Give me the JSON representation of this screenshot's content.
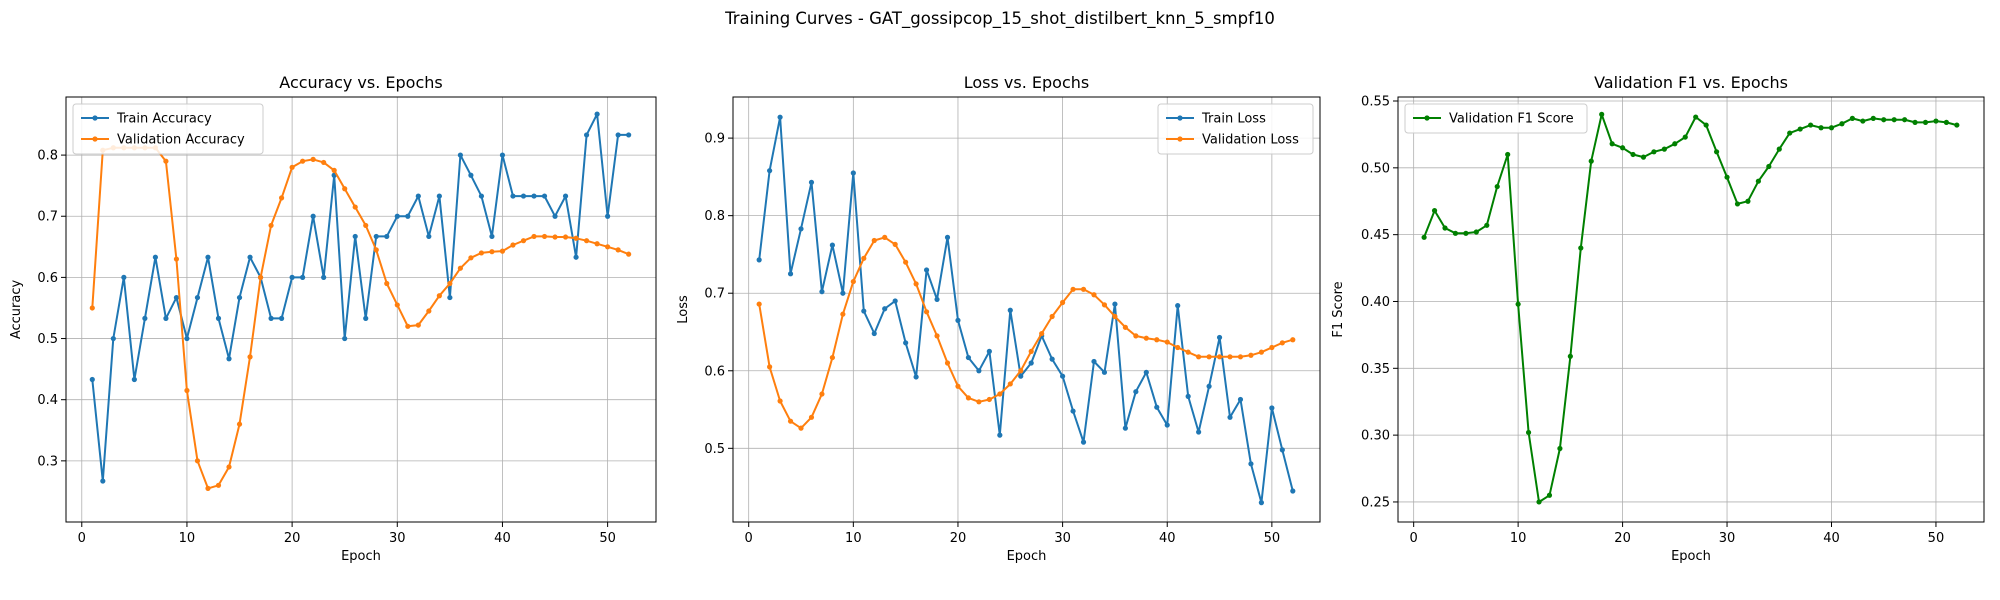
{
  "figure": {
    "suptitle": "Training Curves - GAT_gossipcop_15_shot_distilbert_knn_5_smpf10"
  },
  "chart_data": [
    {
      "type": "line",
      "title": "Accuracy vs. Epochs",
      "xlabel": "Epoch",
      "ylabel": "Accuracy",
      "xlim": [
        -1.5,
        54.6
      ],
      "ylim": [
        0.2,
        0.895
      ],
      "xticks": [
        0,
        10,
        20,
        30,
        40,
        50
      ],
      "yticks": [
        0.3,
        0.4,
        0.5,
        0.6,
        0.7,
        0.8
      ],
      "ytick_labels": [
        "0.3",
        "0.4",
        "0.5",
        "0.6",
        "0.7",
        "0.8"
      ],
      "grid": true,
      "legend": "top-left",
      "x": [
        1,
        2,
        3,
        4,
        5,
        6,
        7,
        8,
        9,
        10,
        11,
        12,
        13,
        14,
        15,
        16,
        17,
        18,
        19,
        20,
        21,
        22,
        23,
        24,
        25,
        26,
        27,
        28,
        29,
        30,
        31,
        32,
        33,
        34,
        35,
        36,
        37,
        38,
        39,
        40,
        41,
        42,
        43,
        44,
        45,
        46,
        47,
        48,
        49,
        50,
        51,
        52
      ],
      "series": [
        {
          "name": "Train Accuracy",
          "color": "#1f77b4",
          "values": [
            0.433,
            0.267,
            0.5,
            0.6,
            0.433,
            0.533,
            0.633,
            0.533,
            0.567,
            0.5,
            0.567,
            0.633,
            0.533,
            0.467,
            0.567,
            0.633,
            0.6,
            0.533,
            0.533,
            0.6,
            0.6,
            0.7,
            0.6,
            0.767,
            0.5,
            0.667,
            0.533,
            0.667,
            0.667,
            0.7,
            0.7,
            0.733,
            0.667,
            0.733,
            0.567,
            0.8,
            0.767,
            0.733,
            0.667,
            0.8,
            0.733,
            0.733,
            0.733,
            0.733,
            0.7,
            0.733,
            0.633,
            0.833,
            0.867,
            0.7,
            0.833,
            0.833
          ]
        },
        {
          "name": "Validation Accuracy",
          "color": "#ff7f0e",
          "values": [
            0.55,
            0.808,
            0.812,
            0.812,
            0.812,
            0.812,
            0.812,
            0.79,
            0.63,
            0.415,
            0.3,
            0.255,
            0.26,
            0.29,
            0.36,
            0.47,
            0.6,
            0.685,
            0.73,
            0.78,
            0.79,
            0.793,
            0.788,
            0.775,
            0.745,
            0.715,
            0.685,
            0.645,
            0.59,
            0.555,
            0.52,
            0.522,
            0.545,
            0.57,
            0.59,
            0.615,
            0.632,
            0.64,
            0.642,
            0.643,
            0.653,
            0.66,
            0.667,
            0.667,
            0.666,
            0.666,
            0.664,
            0.66,
            0.655,
            0.65,
            0.645,
            0.638
          ]
        }
      ]
    },
    {
      "type": "line",
      "title": "Loss vs. Epochs",
      "xlabel": "Epoch",
      "ylabel": "Loss",
      "xlim": [
        -1.5,
        54.6
      ],
      "ylim": [
        0.405,
        0.953
      ],
      "xticks": [
        0,
        10,
        20,
        30,
        40,
        50
      ],
      "yticks": [
        0.5,
        0.6,
        0.7,
        0.8,
        0.9
      ],
      "ytick_labels": [
        "0.5",
        "0.6",
        "0.7",
        "0.8",
        "0.9"
      ],
      "grid": true,
      "legend": "top-right",
      "x": [
        1,
        2,
        3,
        4,
        5,
        6,
        7,
        8,
        9,
        10,
        11,
        12,
        13,
        14,
        15,
        16,
        17,
        18,
        19,
        20,
        21,
        22,
        23,
        24,
        25,
        26,
        27,
        28,
        29,
        30,
        31,
        32,
        33,
        34,
        35,
        36,
        37,
        38,
        39,
        40,
        41,
        42,
        43,
        44,
        45,
        46,
        47,
        48,
        49,
        50,
        51,
        52
      ],
      "series": [
        {
          "name": "Train Loss",
          "color": "#1f77b4",
          "values": [
            0.743,
            0.858,
            0.927,
            0.725,
            0.783,
            0.843,
            0.702,
            0.762,
            0.7,
            0.855,
            0.677,
            0.648,
            0.68,
            0.69,
            0.636,
            0.592,
            0.73,
            0.692,
            0.772,
            0.665,
            0.617,
            0.6,
            0.625,
            0.517,
            0.678,
            0.593,
            0.61,
            0.645,
            0.615,
            0.593,
            0.548,
            0.508,
            0.612,
            0.598,
            0.686,
            0.526,
            0.573,
            0.598,
            0.553,
            0.53,
            0.684,
            0.567,
            0.521,
            0.58,
            0.643,
            0.54,
            0.563,
            0.48,
            0.43,
            0.552,
            0.498,
            0.445
          ]
        },
        {
          "name": "Validation Loss",
          "color": "#ff7f0e",
          "values": [
            0.686,
            0.605,
            0.561,
            0.535,
            0.526,
            0.54,
            0.57,
            0.617,
            0.673,
            0.715,
            0.745,
            0.768,
            0.772,
            0.763,
            0.74,
            0.712,
            0.676,
            0.645,
            0.61,
            0.58,
            0.565,
            0.56,
            0.563,
            0.57,
            0.583,
            0.6,
            0.625,
            0.648,
            0.67,
            0.688,
            0.705,
            0.705,
            0.698,
            0.685,
            0.67,
            0.656,
            0.645,
            0.642,
            0.64,
            0.637,
            0.63,
            0.624,
            0.618,
            0.618,
            0.618,
            0.618,
            0.618,
            0.62,
            0.624,
            0.63,
            0.636,
            0.64
          ]
        }
      ]
    },
    {
      "type": "line",
      "title": "Validation F1 vs. Epochs",
      "xlabel": "Epoch",
      "ylabel": "F1 Score",
      "xlim": [
        -1.5,
        54.6
      ],
      "ylim": [
        0.235,
        0.553
      ],
      "xticks": [
        0,
        10,
        20,
        30,
        40,
        50
      ],
      "yticks": [
        0.25,
        0.3,
        0.35,
        0.4,
        0.45,
        0.5,
        0.55
      ],
      "ytick_labels": [
        "0.25",
        "0.30",
        "0.35",
        "0.40",
        "0.45",
        "0.50",
        "0.55"
      ],
      "grid": true,
      "legend": "top-left",
      "x": [
        1,
        2,
        3,
        4,
        5,
        6,
        7,
        8,
        9,
        10,
        11,
        12,
        13,
        14,
        15,
        16,
        17,
        18,
        19,
        20,
        21,
        22,
        23,
        24,
        25,
        26,
        27,
        28,
        29,
        30,
        31,
        32,
        33,
        34,
        35,
        36,
        37,
        38,
        39,
        40,
        41,
        42,
        43,
        44,
        45,
        46,
        47,
        48,
        49,
        50,
        51,
        52
      ],
      "series": [
        {
          "name": "Validation F1 Score",
          "color": "#008000",
          "values": [
            0.448,
            0.468,
            0.455,
            0.451,
            0.451,
            0.452,
            0.457,
            0.486,
            0.51,
            0.398,
            0.302,
            0.25,
            0.255,
            0.29,
            0.359,
            0.44,
            0.505,
            0.54,
            0.518,
            0.515,
            0.51,
            0.508,
            0.512,
            0.514,
            0.518,
            0.523,
            0.538,
            0.532,
            0.512,
            0.493,
            0.473,
            0.475,
            0.49,
            0.501,
            0.514,
            0.526,
            0.529,
            0.532,
            0.53,
            0.53,
            0.533,
            0.537,
            0.535,
            0.537,
            0.536,
            0.536,
            0.536,
            0.534,
            0.534,
            0.535,
            0.534,
            0.532
          ]
        }
      ]
    }
  ]
}
